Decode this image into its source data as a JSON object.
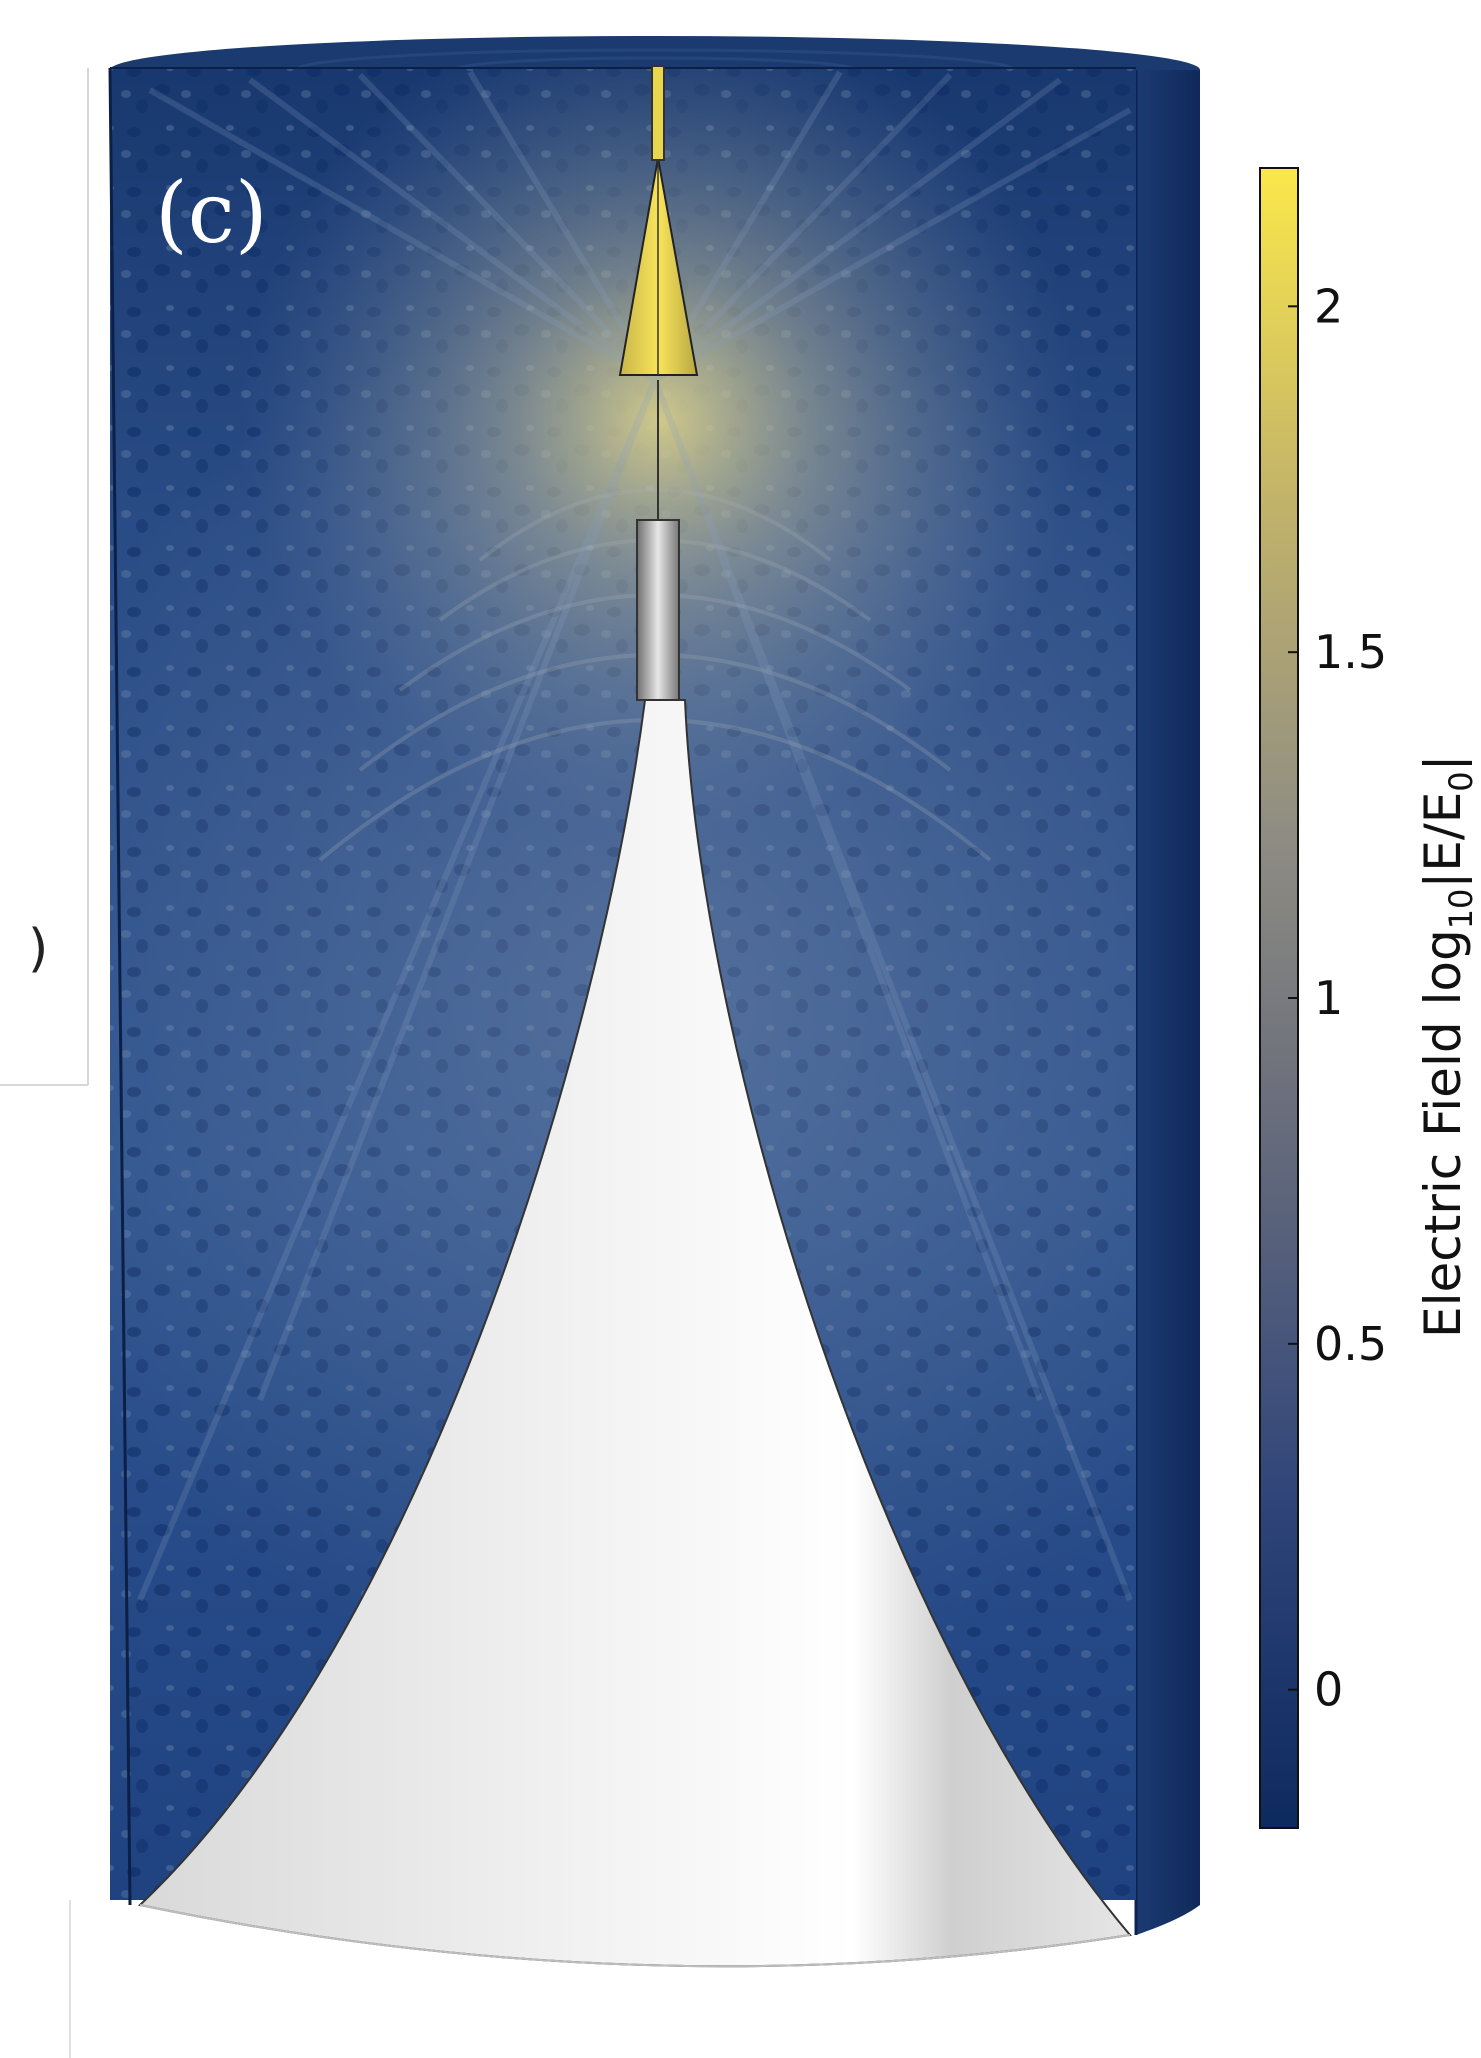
{
  "figure": {
    "panel_label": "(c)",
    "edge_glyph": ")"
  },
  "colorbar": {
    "title_main": "Electric Field log",
    "title_sub": "10",
    "title_mid": "|E/E",
    "title_sub2": "0",
    "title_end": "|",
    "range": [
      -0.2,
      2.2
    ],
    "ticks": [
      {
        "value": 0,
        "label": "0"
      },
      {
        "value": 0.5,
        "label": "0.5"
      },
      {
        "value": 1,
        "label": "1"
      },
      {
        "value": 1.5,
        "label": "1.5"
      },
      {
        "value": 2,
        "label": "2"
      }
    ],
    "colors": {
      "low": "#0e2d66",
      "mid": "#8a8a8a",
      "high": "#f7e24a"
    }
  }
}
